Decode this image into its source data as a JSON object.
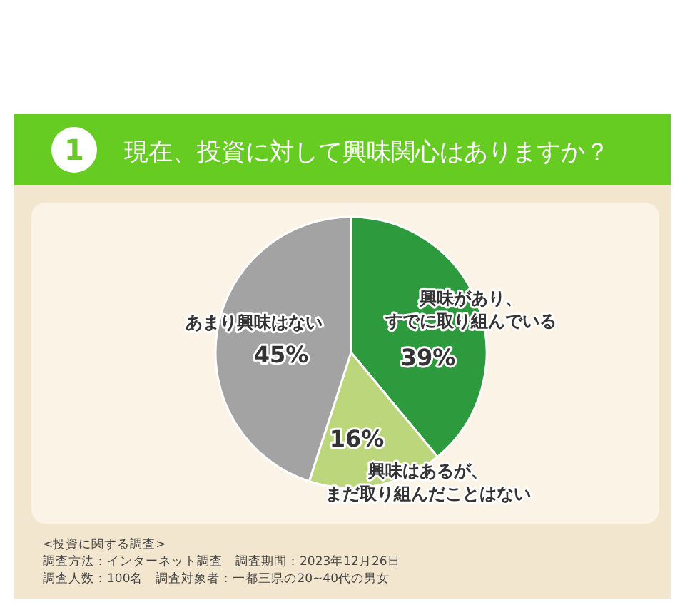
{
  "chart_data": {
    "type": "pie",
    "title": "現在、投資に対して興味関心はありますか？",
    "categories": [
      "興味があり、すでに取り組んでいる",
      "興味はあるが、まだ取り組んだことはない",
      "あまり興味はない"
    ],
    "values": [
      39,
      16,
      45
    ],
    "colors": [
      "#2e9a3e",
      "#bcd67c",
      "#a3a3a3"
    ],
    "value_labels": [
      "39%",
      "16%",
      "45%"
    ],
    "legend": false,
    "annotations": [
      "1",
      "<投資に関する調査>",
      "調査方法：インターネット調査　調査期間：2023年12月26日",
      "調査人数：100名　調査対象者：一都三県の20~40代の男女"
    ]
  }
}
